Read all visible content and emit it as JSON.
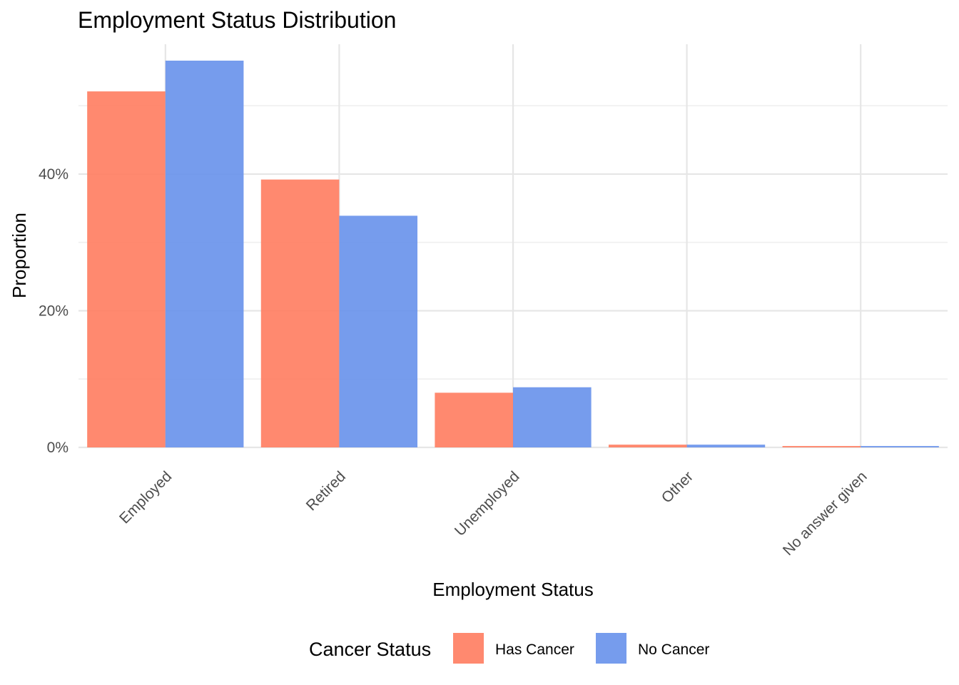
{
  "chart_data": {
    "type": "bar",
    "title": "Employment Status Distribution",
    "xlabel": "Employment Status",
    "ylabel": "Proportion",
    "categories": [
      "Employed",
      "Retired",
      "Unemployed",
      "Other",
      "No answer given"
    ],
    "series": [
      {
        "name": "Has Cancer",
        "color": "#FF7F63",
        "values": [
          0.521,
          0.392,
          0.08,
          0.004,
          0.002
        ]
      },
      {
        "name": "No Cancer",
        "color": "#6A94EC",
        "values": [
          0.566,
          0.339,
          0.088,
          0.004,
          0.002
        ]
      }
    ],
    "ylim": [
      0,
      0.59
    ],
    "yticks": [
      0,
      0.2,
      0.4
    ],
    "ytick_labels": [
      "0%",
      "20%",
      "40%"
    ],
    "grid": true,
    "legend": {
      "title": "Cancer Status",
      "position": "bottom"
    }
  }
}
